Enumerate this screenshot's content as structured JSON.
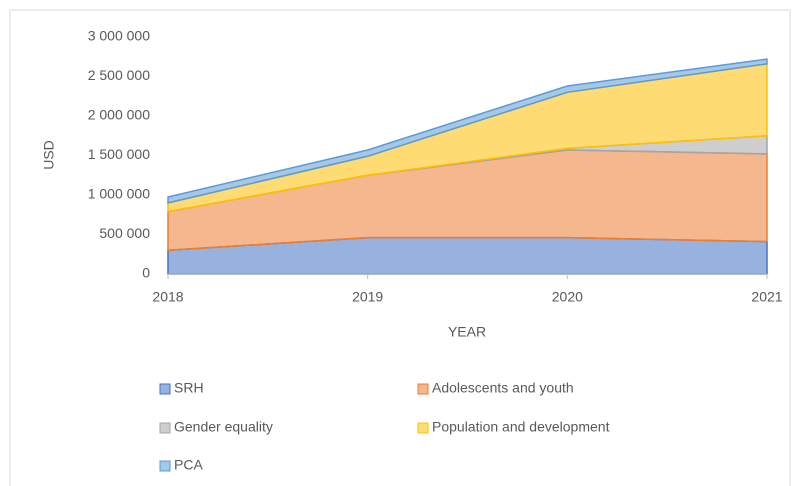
{
  "chart_data": {
    "type": "stacked_area",
    "x": [
      2018,
      2019,
      2020,
      2021
    ],
    "series": [
      {
        "name": "SRH",
        "color": "#4472c4",
        "values": [
          300000,
          460000,
          460000,
          410000
        ]
      },
      {
        "name": "Adolescents and youth",
        "color": "#ed7d31",
        "values": [
          490000,
          790000,
          1110000,
          1110000
        ]
      },
      {
        "name": "Gender equality",
        "color": "#a5a5a5",
        "values": [
          0,
          0,
          20000,
          230000
        ]
      },
      {
        "name": "Population and development",
        "color": "#ffc000",
        "values": [
          110000,
          240000,
          710000,
          910000
        ]
      },
      {
        "name": "PCA",
        "color": "#5b9bd5",
        "values": [
          75000,
          80000,
          80000,
          60000
        ]
      }
    ],
    "xlabel": "YEAR",
    "ylabel": "USD",
    "xlim": [
      2018,
      2021
    ],
    "xticks": [
      2018,
      2019,
      2020,
      2021
    ],
    "ylim": [
      0,
      3000000
    ],
    "yticks": [
      0,
      {
        "value": 500000,
        "label": "500 000"
      },
      {
        "value": 1000000,
        "label": "1 000 000"
      },
      {
        "value": 1500000,
        "label": "1 500 000"
      },
      {
        "value": 2000000,
        "label": "2 000 000"
      },
      {
        "value": 2500000,
        "label": "2 500 000"
      },
      {
        "value": 3000000,
        "label": "3 000 000"
      }
    ],
    "grid": false,
    "legend": "bottom"
  }
}
